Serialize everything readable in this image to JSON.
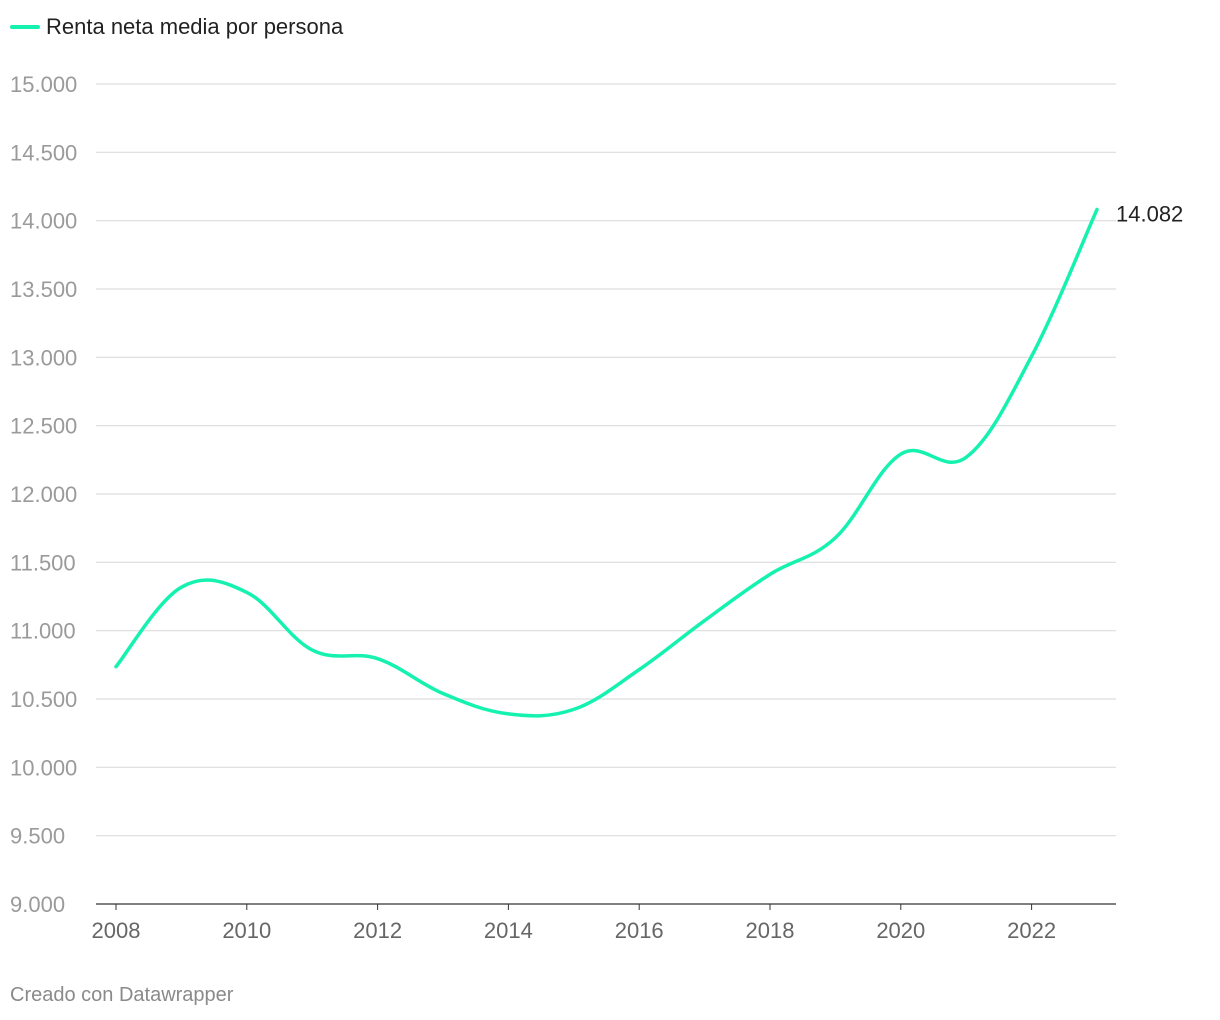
{
  "chart_data": {
    "type": "line",
    "title": "",
    "legend": {
      "position": "top-left"
    },
    "series": [
      {
        "name": "Renta neta media por persona",
        "color": "#15f2b0",
        "x": [
          2008,
          2009,
          2010,
          2011,
          2012,
          2013,
          2014,
          2015,
          2016,
          2017,
          2018,
          2019,
          2020,
          2021,
          2022,
          2023
        ],
        "values": [
          10737,
          11318,
          11280,
          10858,
          10795,
          10540,
          10391,
          10424,
          10715,
          11074,
          11412,
          11680,
          12292,
          12269,
          13008,
          14082
        ]
      }
    ],
    "ylim": [
      9000,
      15000
    ],
    "yticks": [
      15000,
      14500,
      14000,
      13500,
      13000,
      12500,
      12000,
      11500,
      11000,
      10500,
      10000,
      9500,
      9000
    ],
    "ytick_labels": [
      "15.000",
      "14.500",
      "14.000",
      "13.500",
      "13.000",
      "12.500",
      "12.000",
      "11.500",
      "11.000",
      "10.500",
      "10.000",
      "9.500",
      "9.000"
    ],
    "xticks": [
      2008,
      2010,
      2012,
      2014,
      2016,
      2018,
      2020,
      2022
    ],
    "xtick_labels": [
      "2008",
      "2010",
      "2012",
      "2014",
      "2016",
      "2018",
      "2020",
      "2022"
    ],
    "end_label": "14.082",
    "grid": true,
    "xlabel": "",
    "ylabel": ""
  },
  "legend": {
    "label": "Renta neta media por persona"
  },
  "footer": {
    "credit": "Creado con Datawrapper"
  },
  "colors": {
    "line": "#15f2b0",
    "grid": "#dddddd",
    "axis": "#333333"
  }
}
